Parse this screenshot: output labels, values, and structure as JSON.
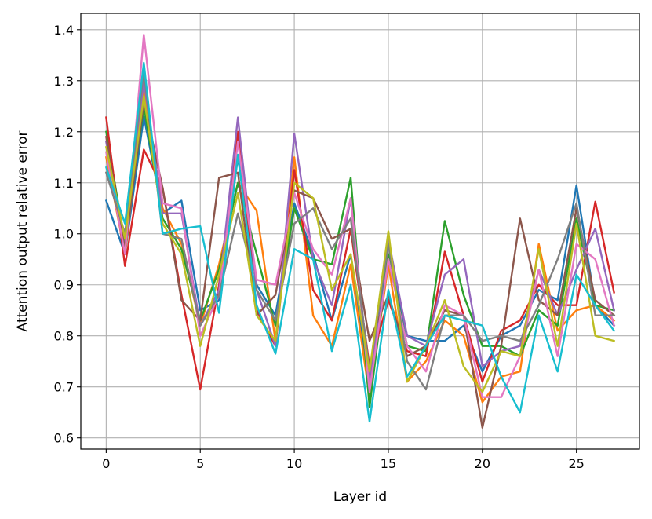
{
  "chart_data": {
    "type": "line",
    "title": "",
    "xlabel": "Layer id",
    "ylabel": "Attention output relative error",
    "xlim": [
      -1.35,
      28.35
    ],
    "ylim": [
      0.578,
      1.432
    ],
    "xticks": [
      0,
      5,
      10,
      15,
      20,
      25
    ],
    "yticks": [
      0.6,
      0.7,
      0.8,
      0.9,
      1.0,
      1.1,
      1.2,
      1.3,
      1.4
    ],
    "ytick_labels": [
      "0.6",
      "0.7",
      "0.8",
      "0.9",
      "1.0",
      "1.1",
      "1.2",
      "1.3",
      "1.4"
    ],
    "xtick_labels": [
      "0",
      "5",
      "10",
      "15",
      "20",
      "25"
    ],
    "grid": true,
    "legend": "none",
    "x": [
      0,
      1,
      2,
      3,
      4,
      5,
      6,
      7,
      8,
      9,
      10,
      11,
      12,
      13,
      14,
      15,
      16,
      17,
      18,
      19,
      20,
      21,
      22,
      23,
      24,
      25,
      26,
      27
    ],
    "series": [
      {
        "color": "#1f77b4",
        "values": [
          1.065,
          0.96,
          1.23,
          1.04,
          1.065,
          0.85,
          0.87,
          1.15,
          0.9,
          0.84,
          1.06,
          0.96,
          0.83,
          0.96,
          0.7,
          0.96,
          0.8,
          0.79,
          0.79,
          0.82,
          0.73,
          0.8,
          0.82,
          0.89,
          0.87,
          1.095,
          0.86,
          0.82
        ]
      },
      {
        "color": "#ff7f0e",
        "values": [
          1.15,
          0.96,
          1.28,
          1.05,
          0.98,
          0.82,
          0.94,
          1.1,
          1.045,
          0.79,
          1.15,
          0.84,
          0.78,
          0.94,
          0.68,
          0.94,
          0.71,
          0.75,
          0.83,
          0.8,
          0.67,
          0.72,
          0.73,
          0.98,
          0.81,
          0.85,
          0.86,
          0.83
        ]
      },
      {
        "color": "#2ca02c",
        "values": [
          1.2,
          0.98,
          1.25,
          1.03,
          0.97,
          0.83,
          0.93,
          1.1,
          0.96,
          0.82,
          1.05,
          0.95,
          0.94,
          1.11,
          0.66,
          0.96,
          0.78,
          0.77,
          1.025,
          0.88,
          0.78,
          0.78,
          0.76,
          0.85,
          0.82,
          1.03,
          0.86,
          0.85
        ]
      },
      {
        "color": "#d62728",
        "values": [
          1.228,
          0.937,
          1.165,
          1.09,
          0.88,
          0.695,
          0.9,
          1.2,
          0.85,
          0.78,
          1.125,
          0.89,
          0.83,
          1.01,
          0.74,
          0.87,
          0.77,
          0.76,
          0.965,
          0.84,
          0.71,
          0.81,
          0.83,
          0.9,
          0.86,
          0.86,
          1.063,
          0.885
        ]
      },
      {
        "color": "#9467bd",
        "values": [
          1.18,
          0.98,
          1.3,
          1.04,
          1.04,
          0.82,
          0.89,
          1.228,
          0.89,
          0.78,
          1.196,
          0.95,
          0.86,
          1.07,
          0.71,
          0.99,
          0.8,
          0.78,
          0.92,
          0.95,
          0.74,
          0.77,
          0.78,
          0.93,
          0.84,
          0.93,
          1.01,
          0.85
        ]
      },
      {
        "color": "#8c564b",
        "values": [
          1.19,
          0.97,
          1.26,
          1.09,
          0.87,
          0.83,
          1.11,
          1.12,
          0.84,
          0.88,
          1.085,
          1.07,
          0.99,
          1.01,
          0.79,
          0.88,
          0.76,
          0.78,
          0.85,
          0.84,
          0.62,
          0.78,
          1.03,
          0.87,
          0.84,
          1.05,
          0.87,
          0.84
        ]
      },
      {
        "color": "#e377c2",
        "values": [
          1.16,
          0.96,
          1.39,
          1.06,
          1.05,
          0.8,
          0.88,
          1.18,
          0.91,
          0.9,
          1.08,
          0.97,
          0.92,
          1.07,
          0.69,
          0.95,
          0.78,
          0.73,
          0.86,
          0.84,
          0.68,
          0.68,
          0.76,
          0.93,
          0.76,
          0.98,
          0.95,
          0.82
        ]
      },
      {
        "color": "#7f7f7f",
        "values": [
          1.12,
          1.0,
          1.32,
          1.0,
          0.99,
          0.82,
          0.88,
          1.04,
          0.89,
          0.83,
          1.02,
          1.05,
          0.97,
          1.03,
          0.73,
          0.98,
          0.75,
          0.695,
          0.84,
          0.84,
          0.79,
          0.8,
          0.79,
          0.86,
          0.95,
          1.06,
          0.84,
          0.84
        ]
      },
      {
        "color": "#bcbd22",
        "values": [
          1.17,
          0.99,
          1.27,
          1.02,
          0.96,
          0.78,
          0.92,
          1.08,
          0.84,
          0.79,
          1.1,
          1.07,
          0.89,
          0.96,
          0.73,
          1.005,
          0.71,
          0.78,
          0.87,
          0.74,
          0.69,
          0.77,
          0.76,
          0.97,
          0.78,
          1.02,
          0.8,
          0.79
        ]
      },
      {
        "color": "#17becf",
        "values": [
          1.13,
          1.02,
          1.335,
          1.0,
          1.01,
          1.015,
          0.845,
          1.155,
          0.86,
          0.765,
          0.97,
          0.95,
          0.77,
          0.9,
          0.632,
          0.89,
          0.72,
          0.78,
          0.84,
          0.83,
          0.82,
          0.72,
          0.65,
          0.84,
          0.73,
          0.92,
          0.86,
          0.81
        ]
      }
    ]
  }
}
